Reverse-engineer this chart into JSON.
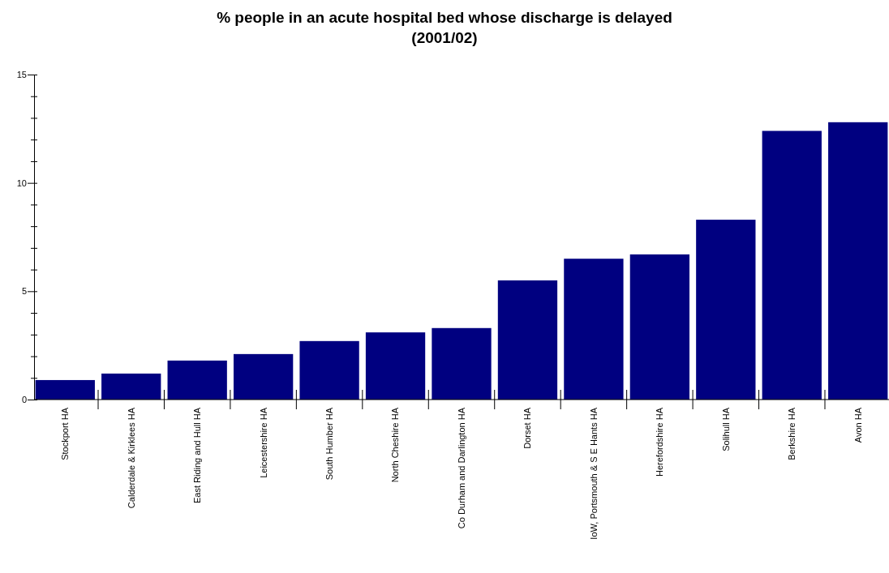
{
  "chart_data": {
    "type": "bar",
    "title": "% people in an acute hospital bed whose discharge is delayed",
    "subtitle": "(2001/02)",
    "categories": [
      "Stockport HA",
      "Calderdale & Kirklees HA",
      "East Riding and Hull HA",
      "Leicestershire HA",
      "South Humber HA",
      "North Cheshire HA",
      "Co Durham and Darlington HA",
      "Dorset HA",
      "IoW, Portsmouth & S E Hants HA",
      "Herefordshire HA",
      "Solihull HA",
      "Berkshire HA",
      "Avon HA"
    ],
    "values": [
      0.9,
      1.2,
      1.8,
      2.1,
      2.7,
      3.1,
      3.3,
      5.5,
      6.5,
      6.7,
      8.3,
      12.4,
      12.8
    ],
    "color": "#000080",
    "ylim": [
      0,
      15
    ],
    "yticks": [
      0,
      {
        "value": 1,
        "label": null
      },
      {
        "value": 2,
        "label": null
      },
      {
        "value": 3,
        "label": null
      },
      {
        "value": 4,
        "label": null
      },
      5,
      {
        "value": 6,
        "label": null
      },
      {
        "value": 7,
        "label": null
      },
      {
        "value": 8,
        "label": null
      },
      {
        "value": 9,
        "label": null
      },
      10,
      {
        "value": 11,
        "label": null
      },
      {
        "value": 12,
        "label": null
      },
      {
        "value": 13,
        "label": null
      },
      {
        "value": 14,
        "label": null
      },
      15
    ]
  }
}
